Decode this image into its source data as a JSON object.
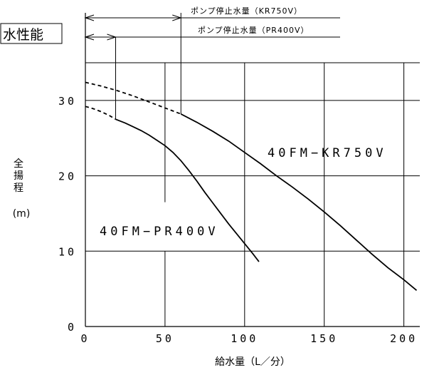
{
  "chart_data": {
    "type": "line",
    "title": "水性能",
    "xlabel": "給水量（L／分）",
    "ylabel_chars": [
      "全",
      "揚",
      "程"
    ],
    "yunit": "(m)",
    "xlim": [
      0,
      210
    ],
    "ylim": [
      0,
      35
    ],
    "x_ticks": [
      0,
      50,
      100,
      150,
      200
    ],
    "y_ticks": [
      0,
      10,
      20,
      30
    ],
    "x_tick_labels": [
      "0",
      "50",
      "100",
      "150",
      "200"
    ],
    "y_tick_labels": [
      "0",
      "10",
      "20",
      "30"
    ],
    "series": [
      {
        "name": "40FM−KR750V",
        "dashed_x": [
          0,
          10,
          20,
          30,
          40,
          50,
          60
        ],
        "dashed_y": [
          32.4,
          31.9,
          31.3,
          30.6,
          29.8,
          29.0,
          28.2
        ],
        "solid_x": [
          60,
          70,
          80,
          90,
          100,
          110,
          120,
          130,
          140,
          150,
          160,
          170,
          180,
          190,
          200,
          208
        ],
        "solid_y": [
          28.2,
          27.1,
          25.9,
          24.6,
          23.1,
          21.6,
          20.0,
          18.5,
          16.9,
          15.2,
          13.4,
          11.5,
          9.6,
          7.8,
          6.2,
          4.8
        ]
      },
      {
        "name": "40FM−PR400V",
        "dashed_x": [
          0,
          5,
          10,
          15,
          19
        ],
        "dashed_y": [
          29.2,
          28.9,
          28.5,
          28.0,
          27.5
        ],
        "solid_x": [
          19,
          25,
          30,
          35,
          40,
          45,
          50,
          55,
          60,
          65,
          70,
          75,
          80,
          85,
          90,
          95,
          100,
          105,
          109
        ],
        "solid_y": [
          27.5,
          27.0,
          26.5,
          26.0,
          25.4,
          24.7,
          24.0,
          23.1,
          22.0,
          20.7,
          19.3,
          17.8,
          16.4,
          15.0,
          13.6,
          12.3,
          11.0,
          9.7,
          8.6
        ]
      }
    ],
    "annotations": [
      {
        "text": "ポンプ停止水量（KR750V）",
        "x": 60
      },
      {
        "text": "ポンプ停止水量（PR400V）",
        "x": 19
      }
    ],
    "grid": true
  }
}
